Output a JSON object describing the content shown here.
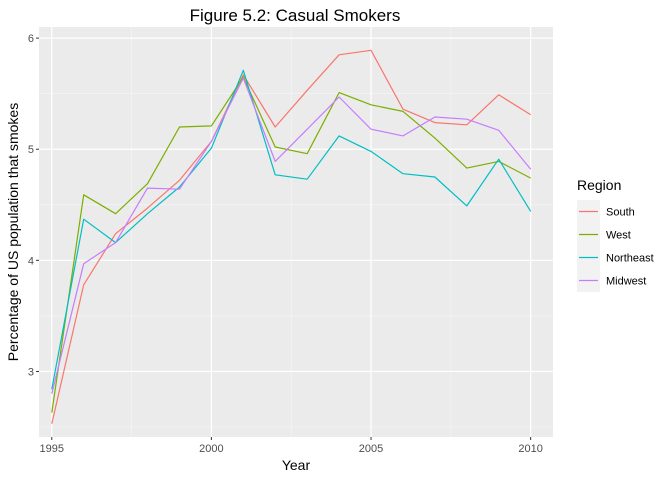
{
  "chart_data": {
    "type": "line",
    "title": "Figure 5.2: Casual Smokers",
    "xlabel": "Year",
    "ylabel": "Percentage of US population that smokes",
    "xlim": [
      1994.6,
      2010.7
    ],
    "ylim": [
      2.41,
      6.1
    ],
    "xticks": [
      1995,
      2000,
      2005,
      2010
    ],
    "yticks": [
      3,
      4,
      5,
      6
    ],
    "grid": true,
    "legend": {
      "title": "Region",
      "position": "right"
    },
    "x": [
      1995,
      1996,
      1997,
      1998,
      1999,
      2000,
      2001,
      2002,
      2003,
      2004,
      2005,
      2006,
      2007,
      2008,
      2009,
      2010
    ],
    "series": [
      {
        "name": "South",
        "color": "#F8766D",
        "values": [
          2.53,
          3.78,
          4.24,
          4.47,
          4.72,
          5.07,
          5.67,
          5.2,
          5.53,
          5.85,
          5.89,
          5.36,
          5.24,
          5.22,
          5.49,
          5.31
        ]
      },
      {
        "name": "West",
        "color": "#7CAE00",
        "values": [
          2.63,
          4.59,
          4.42,
          4.69,
          5.2,
          5.21,
          5.65,
          5.02,
          4.96,
          5.51,
          5.4,
          5.34,
          5.1,
          4.83,
          4.89,
          4.74
        ]
      },
      {
        "name": "Northeast",
        "color": "#00BFC4",
        "values": [
          2.84,
          4.37,
          4.16,
          4.42,
          4.66,
          5.01,
          5.71,
          4.77,
          4.73,
          5.12,
          4.98,
          4.78,
          4.75,
          4.49,
          4.91,
          4.44
        ]
      },
      {
        "name": "Midwest",
        "color": "#C77CFF",
        "values": [
          2.8,
          3.97,
          4.16,
          4.65,
          4.64,
          5.07,
          5.64,
          4.89,
          5.18,
          5.47,
          5.18,
          5.12,
          5.29,
          5.27,
          5.17,
          4.82
        ]
      }
    ]
  }
}
